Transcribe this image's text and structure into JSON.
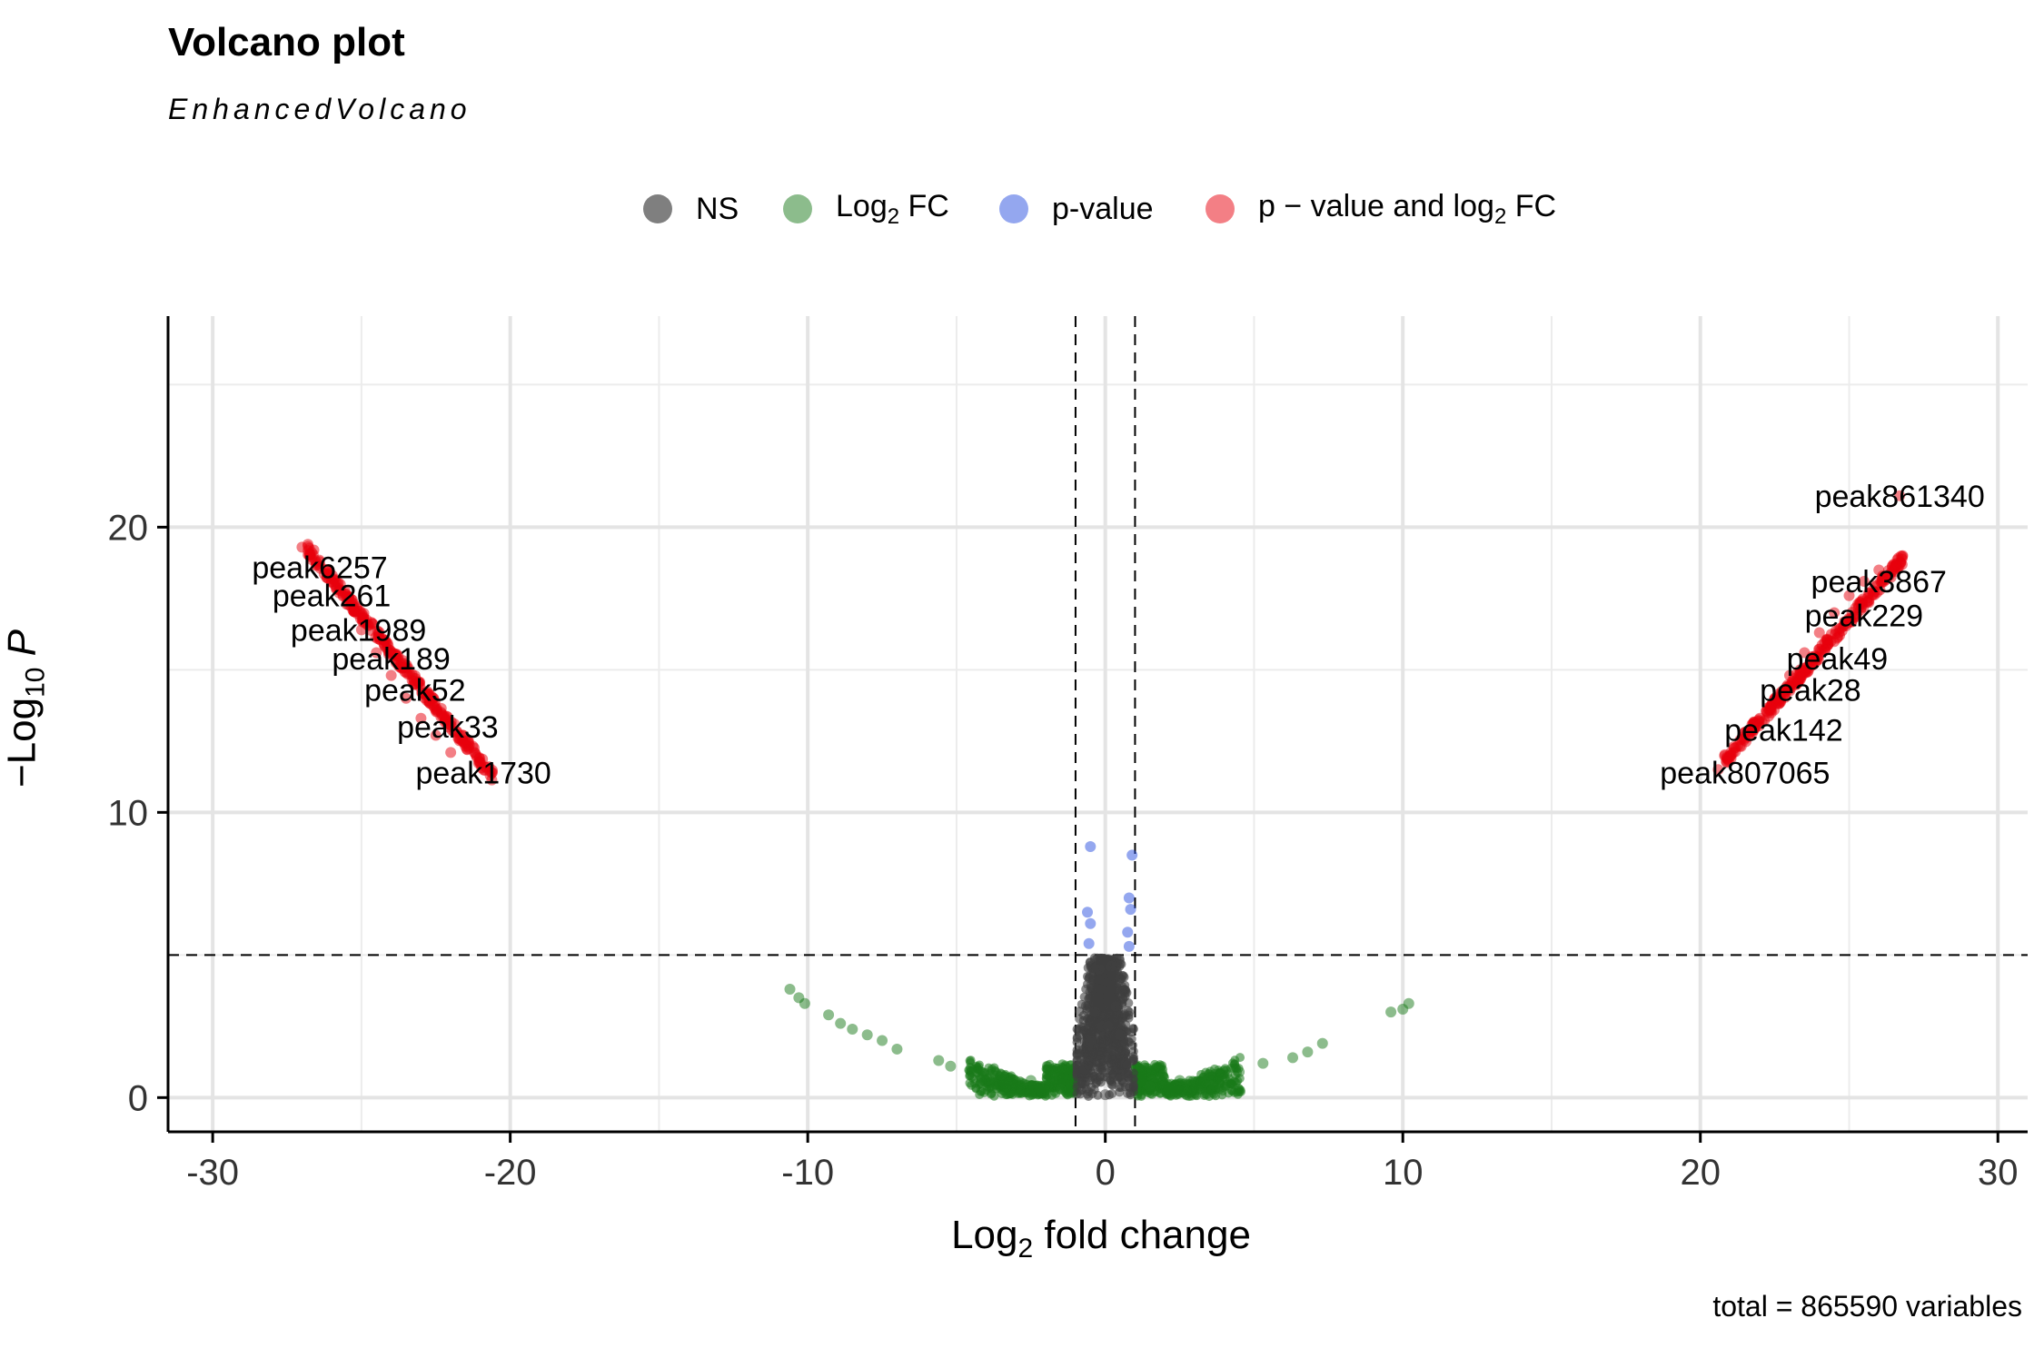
{
  "chart_data": {
    "type": "scatter",
    "title": "Volcano plot",
    "subtitle": "EnhancedVolcano",
    "caption": "total = 865590 variables",
    "xlabel": "Log2 fold change",
    "ylabel": "−Log10 P",
    "xlim": [
      -31.5,
      31
    ],
    "ylim": [
      -1.2,
      27.4
    ],
    "x_ticks": [
      -30,
      -20,
      -10,
      0,
      10,
      20,
      30
    ],
    "y_ticks": [
      0,
      10,
      20
    ],
    "x_tick_labels": [
      "-30",
      "-20",
      "-10",
      "0",
      "10",
      "20",
      "30"
    ],
    "y_tick_labels": [
      "0",
      "10",
      "20"
    ],
    "grid": true,
    "legend_position": "top",
    "cutoffs": {
      "log2fc": 1,
      "neg_log10_p": 5
    },
    "legend": [
      {
        "key": "ns",
        "label": "NS",
        "color": "#000000"
      },
      {
        "key": "fc",
        "label_main": "Log",
        "label_sub": "2",
        "label_tail": " FC",
        "color": "#1a7a1a"
      },
      {
        "key": "p",
        "label": "p-value",
        "color": "#2a50e0"
      },
      {
        "key": "pfc",
        "label_main": "p − value and log",
        "label_sub": "2",
        "label_tail": " FC",
        "color": "#e8000b"
      }
    ],
    "series": [
      {
        "name": "NS",
        "color": "#404040",
        "points": [
          [
            -0.9,
            0.5
          ],
          [
            -0.7,
            1.0
          ],
          [
            -0.5,
            2.0
          ],
          [
            -0.35,
            3.0
          ],
          [
            -0.2,
            4.5
          ],
          [
            0,
            0.1
          ],
          [
            0.2,
            4.6
          ],
          [
            0.35,
            3.2
          ],
          [
            0.5,
            2.2
          ],
          [
            0.7,
            1.2
          ],
          [
            0.9,
            0.6
          ],
          [
            -0.1,
            2.5
          ],
          [
            0.1,
            2.5
          ]
        ]
      },
      {
        "name": "Log2 FC",
        "color": "#1a7a1a",
        "points": [
          [
            -10.6,
            3.8
          ],
          [
            -10.3,
            3.5
          ],
          [
            -10.1,
            3.3
          ],
          [
            -9.3,
            2.9
          ],
          [
            -8.9,
            2.6
          ],
          [
            -8.5,
            2.4
          ],
          [
            -8.0,
            2.2
          ],
          [
            -7.5,
            2.0
          ],
          [
            -7.0,
            1.7
          ],
          [
            -5.6,
            1.3
          ],
          [
            -5.2,
            1.1
          ],
          [
            -4.5,
            0.9
          ],
          [
            -3.5,
            0.8
          ],
          [
            -2.5,
            0.6
          ],
          [
            -1.5,
            0.3
          ],
          [
            1.5,
            0.4
          ],
          [
            2.5,
            0.6
          ],
          [
            3.5,
            0.8
          ],
          [
            4.5,
            0.9
          ],
          [
            5.3,
            1.2
          ],
          [
            6.3,
            1.4
          ],
          [
            6.8,
            1.6
          ],
          [
            7.3,
            1.9
          ],
          [
            9.6,
            3.0
          ],
          [
            10.0,
            3.1
          ],
          [
            10.2,
            3.3
          ]
        ]
      },
      {
        "name": "p-value",
        "color": "#2a50e0",
        "points": [
          [
            -0.5,
            8.8
          ],
          [
            -0.6,
            6.5
          ],
          [
            -0.5,
            6.1
          ],
          [
            -0.55,
            5.4
          ],
          [
            0.9,
            8.5
          ],
          [
            0.8,
            7.0
          ],
          [
            0.85,
            6.6
          ],
          [
            0.75,
            5.8
          ],
          [
            0.8,
            5.3
          ]
        ]
      },
      {
        "name": "p − value and log2 FC",
        "color": "#e8000b",
        "points": [
          [
            -27.0,
            19.3
          ],
          [
            -26.8,
            19.4
          ],
          [
            -26.6,
            19.2
          ],
          [
            -26.0,
            18.1
          ],
          [
            -25.5,
            17.3
          ],
          [
            -25.0,
            16.4
          ],
          [
            -24.5,
            15.6
          ],
          [
            -24.0,
            14.8
          ],
          [
            -23.5,
            14.0
          ],
          [
            -23.0,
            13.3
          ],
          [
            -22.5,
            12.7
          ],
          [
            -22.0,
            12.1
          ],
          [
            -21.5,
            12.4
          ],
          [
            -21.0,
            11.7
          ],
          [
            -20.6,
            11.4
          ],
          [
            21.0,
            12.0
          ],
          [
            21.5,
            12.6
          ],
          [
            22.0,
            13.3
          ],
          [
            22.5,
            14.0
          ],
          [
            23.0,
            14.8
          ],
          [
            23.5,
            15.6
          ],
          [
            24.0,
            16.3
          ],
          [
            24.5,
            17.0
          ],
          [
            25.0,
            17.6
          ],
          [
            25.5,
            18.1
          ],
          [
            26.0,
            18.5
          ],
          [
            26.5,
            18.7
          ],
          [
            26.8,
            19.0
          ],
          [
            26.7,
            21.1
          ],
          [
            20.6,
            11.5
          ]
        ]
      }
    ],
    "labels": [
      {
        "text": "peak861340",
        "x": 26.7,
        "y": 21.1
      },
      {
        "text": "peak3867",
        "x": 26.0,
        "y": 18.1
      },
      {
        "text": "peak229",
        "x": 25.5,
        "y": 16.9
      },
      {
        "text": "peak49",
        "x": 24.6,
        "y": 15.4
      },
      {
        "text": "peak28",
        "x": 23.7,
        "y": 14.3
      },
      {
        "text": "peak142",
        "x": 22.8,
        "y": 12.9
      },
      {
        "text": "peak807065",
        "x": 21.5,
        "y": 11.4
      },
      {
        "text": "peak6257",
        "x": -26.4,
        "y": 18.6
      },
      {
        "text": "peak261",
        "x": -26.0,
        "y": 17.6
      },
      {
        "text": "peak1989",
        "x": -25.1,
        "y": 16.4
      },
      {
        "text": "peak189",
        "x": -24.0,
        "y": 15.4
      },
      {
        "text": "peak52",
        "x": -23.2,
        "y": 14.3
      },
      {
        "text": "peak33",
        "x": -22.1,
        "y": 13.0
      },
      {
        "text": "peak1730",
        "x": -20.9,
        "y": 11.4
      }
    ]
  }
}
